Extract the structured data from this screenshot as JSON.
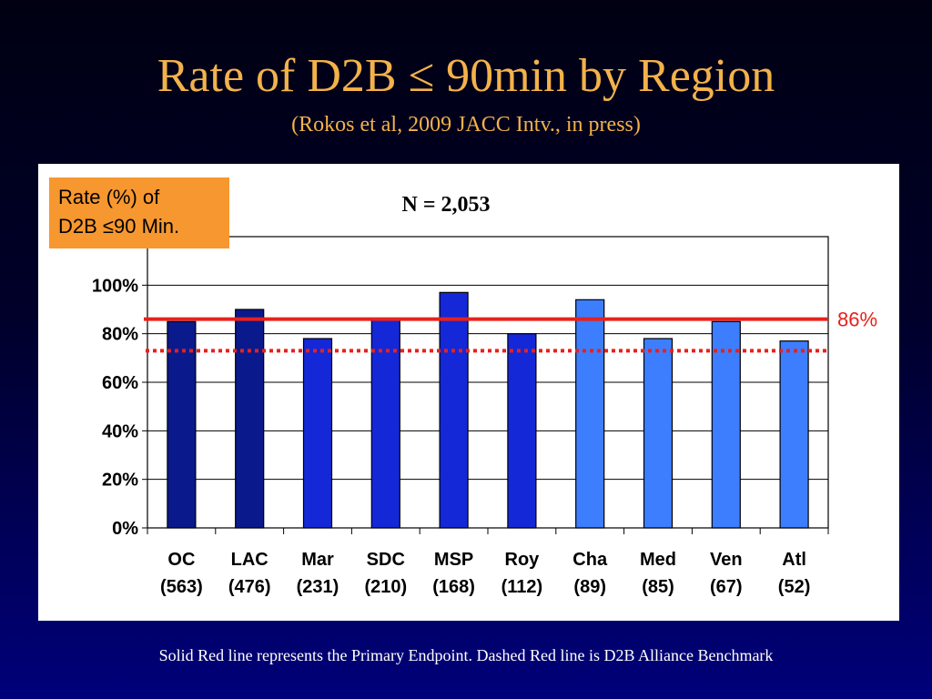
{
  "slide": {
    "title": "Rate of D2B ≤ 90min by Region",
    "subtitle": "(Rokos et al, 2009 JACC Intv., in press)",
    "legend_line1": "Rate (%) of",
    "legend_line2": "D2B ≤90 Min.",
    "footnote": "Solid Red line represents the Primary Endpoint. Dashed Red line is D2B Alliance Benchmark"
  },
  "chart_data": {
    "type": "bar",
    "annotation": "N = 2,053",
    "categories": [
      "OC",
      "LAC",
      "Mar",
      "SDC",
      "MSP",
      "Roy",
      "Cha",
      "Med",
      "Ven",
      "Atl"
    ],
    "category_counts": [
      "(563)",
      "(476)",
      "(231)",
      "(210)",
      "(168)",
      "(112)",
      "(89)",
      "(85)",
      "(67)",
      "(52)"
    ],
    "values": [
      85,
      90,
      78,
      86,
      97,
      80,
      94,
      78,
      85,
      77
    ],
    "bar_colors": [
      "#0a1a8c",
      "#0a1a8c",
      "#1428d8",
      "#1428d8",
      "#1428d8",
      "#1428d8",
      "#3d7eff",
      "#3d7eff",
      "#3d7eff",
      "#3d7eff"
    ],
    "ylim": [
      0,
      120
    ],
    "yticks": [
      0,
      20,
      40,
      60,
      80,
      100
    ],
    "ytick_labels": [
      "0%",
      "20%",
      "40%",
      "60%",
      "80%",
      "100%"
    ],
    "grid": true,
    "reference_lines": [
      {
        "value": 86,
        "style": "solid",
        "color": "#e8201c",
        "label": "86%"
      },
      {
        "value": 73,
        "style": "dashed",
        "color": "#e8201c",
        "label": ""
      }
    ]
  }
}
